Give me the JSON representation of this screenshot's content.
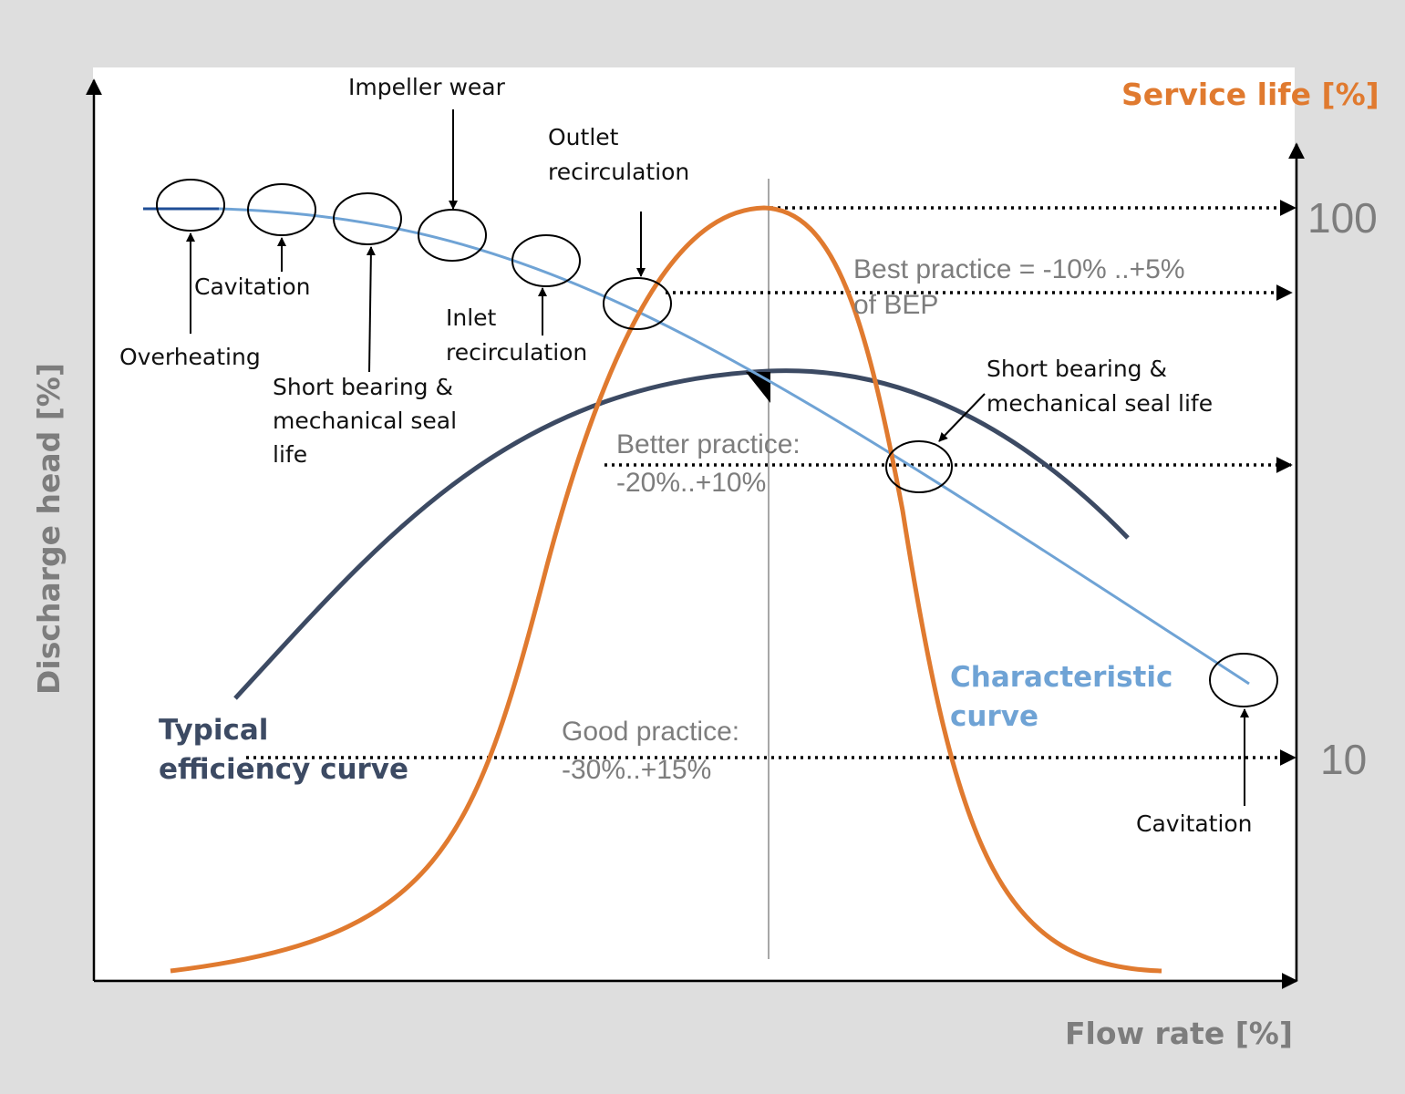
{
  "axes": {
    "y_left_title": "Discharge head [%]",
    "x_title": "Flow rate [%]",
    "y_right_title": "Service life [%]",
    "y_right_ticks": [
      "100",
      "10"
    ]
  },
  "curves": {
    "characteristic": "Characteristic\ncurve",
    "efficiency": "Typical\nefficiency curve"
  },
  "zones": {
    "best": "Best practice = -10% ..+5%\n of BEP",
    "better": "Better practice:\n-20%..+10%",
    "good": "Good practice:\n-30%..+15%"
  },
  "annotations": {
    "impeller_wear": "Impeller wear",
    "outlet_recirculation": "Outlet\nrecirculation",
    "cavitation_low": "Cavitation",
    "overheating": "Overheating",
    "short_bearing_left": "Short bearing &\nmechanical seal\nlife",
    "inlet_recirculation": "Inlet\nrecirculation",
    "short_bearing_right": "Short bearing &\nmechanical seal life",
    "cavitation_high": "Cavitation"
  },
  "colors": {
    "characteristic": "#6fa3d5",
    "efficiency": "#3c4a63",
    "service_life": "#e07a2f",
    "grey_text": "#7d7d7d",
    "background": "#dedede"
  }
}
